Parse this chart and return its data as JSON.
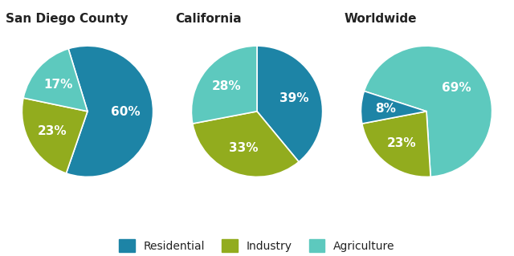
{
  "charts": [
    {
      "title": "San Diego County",
      "values": [
        60,
        23,
        17
      ],
      "labels": [
        "60%",
        "23%",
        "17%"
      ],
      "colors": [
        "#1d84a6",
        "#92ac1e",
        "#5dc9be"
      ],
      "startangle": 107,
      "label_r": [
        0.58,
        0.62,
        0.6
      ]
    },
    {
      "title": "California",
      "values": [
        39,
        33,
        28
      ],
      "labels": [
        "39%",
        "33%",
        "28%"
      ],
      "colors": [
        "#1d84a6",
        "#92ac1e",
        "#5dc9be"
      ],
      "startangle": 90,
      "label_r": [
        0.6,
        0.6,
        0.6
      ]
    },
    {
      "title": "Worldwide",
      "values": [
        69,
        23,
        8
      ],
      "labels": [
        "69%",
        "23%",
        "8%"
      ],
      "colors": [
        "#5dc9be",
        "#92ac1e",
        "#1d84a6"
      ],
      "startangle": 162,
      "label_r": [
        0.58,
        0.62,
        0.62
      ]
    }
  ],
  "legend": [
    {
      "label": "Residential",
      "color": "#1d84a6"
    },
    {
      "label": "Industry",
      "color": "#92ac1e"
    },
    {
      "label": "Agriculture",
      "color": "#5dc9be"
    }
  ],
  "bg_color": "#ffffff",
  "text_color": "#ffffff",
  "title_color": "#222222",
  "title_fontsize": 11,
  "pct_fontsize": 11,
  "legend_fontsize": 10
}
